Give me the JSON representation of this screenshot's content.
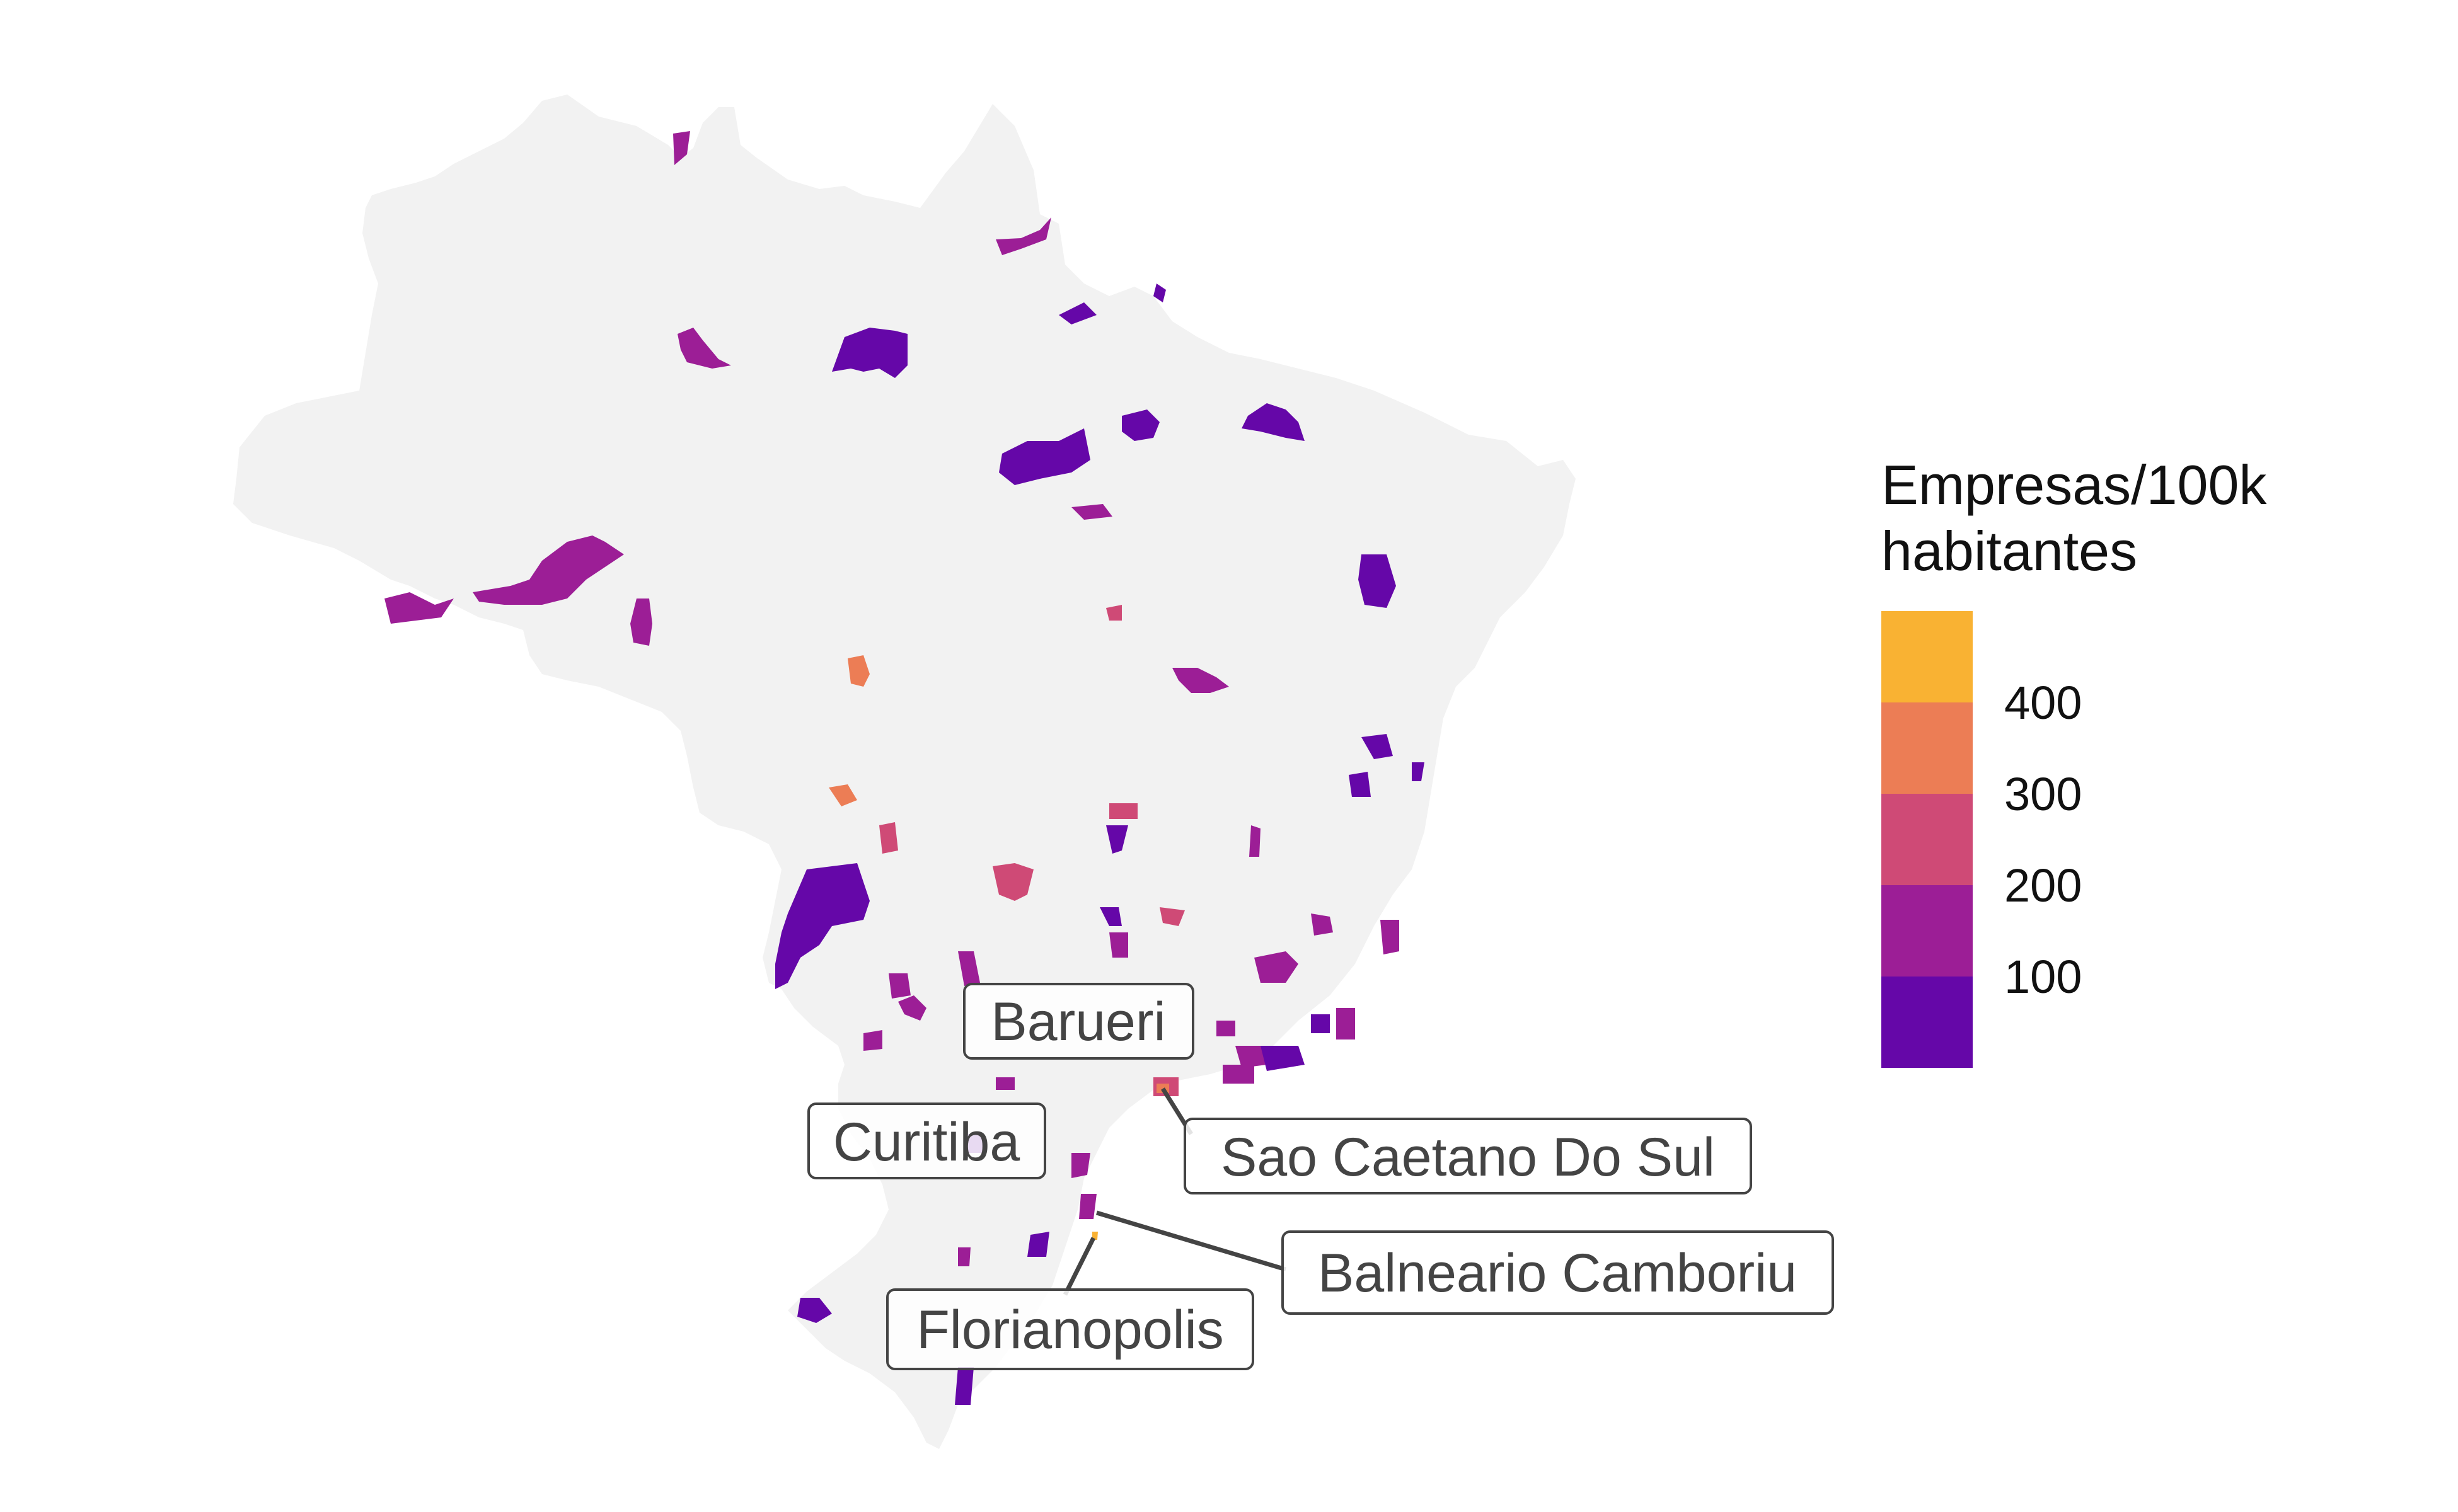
{
  "legend": {
    "title_line1": "Empresas/100k",
    "title_line2": "habitantes",
    "ticks": [
      "400",
      "300",
      "200",
      "100"
    ],
    "bin_colors": [
      "#F9B233",
      "#EC7D55",
      "#CF4A76",
      "#9C1E96",
      "#6507A8"
    ]
  },
  "labels": [
    {
      "id": "barueri",
      "text": "Barueri"
    },
    {
      "id": "curitiba",
      "text": "Curitiba"
    },
    {
      "id": "sao-caetano",
      "text": "Sao Caetano Do Sul"
    },
    {
      "id": "balneario",
      "text": "Balneario Camboriu"
    },
    {
      "id": "florianopolis",
      "text": "Florianopolis"
    }
  ],
  "colors": {
    "land": "#F2F2F2",
    "label_text": "#444444",
    "label_border": "#444444",
    "leader_line": "#444444"
  },
  "chart_data": {
    "type": "choropleth",
    "region": "Brazil",
    "metric": "Empresas/100k habitantes",
    "scale": {
      "breaks": [
        100,
        200,
        300,
        400
      ],
      "palette": "plasma",
      "colors": [
        "#6507A8",
        "#9C1E96",
        "#CF4A76",
        "#EC7D55",
        "#F9B233"
      ]
    },
    "highlighted_municipalities": [
      "Barueri",
      "Curitiba",
      "Sao Caetano Do Sul",
      "Balneario Camboriu",
      "Florianopolis"
    ],
    "legend_position": "right"
  }
}
